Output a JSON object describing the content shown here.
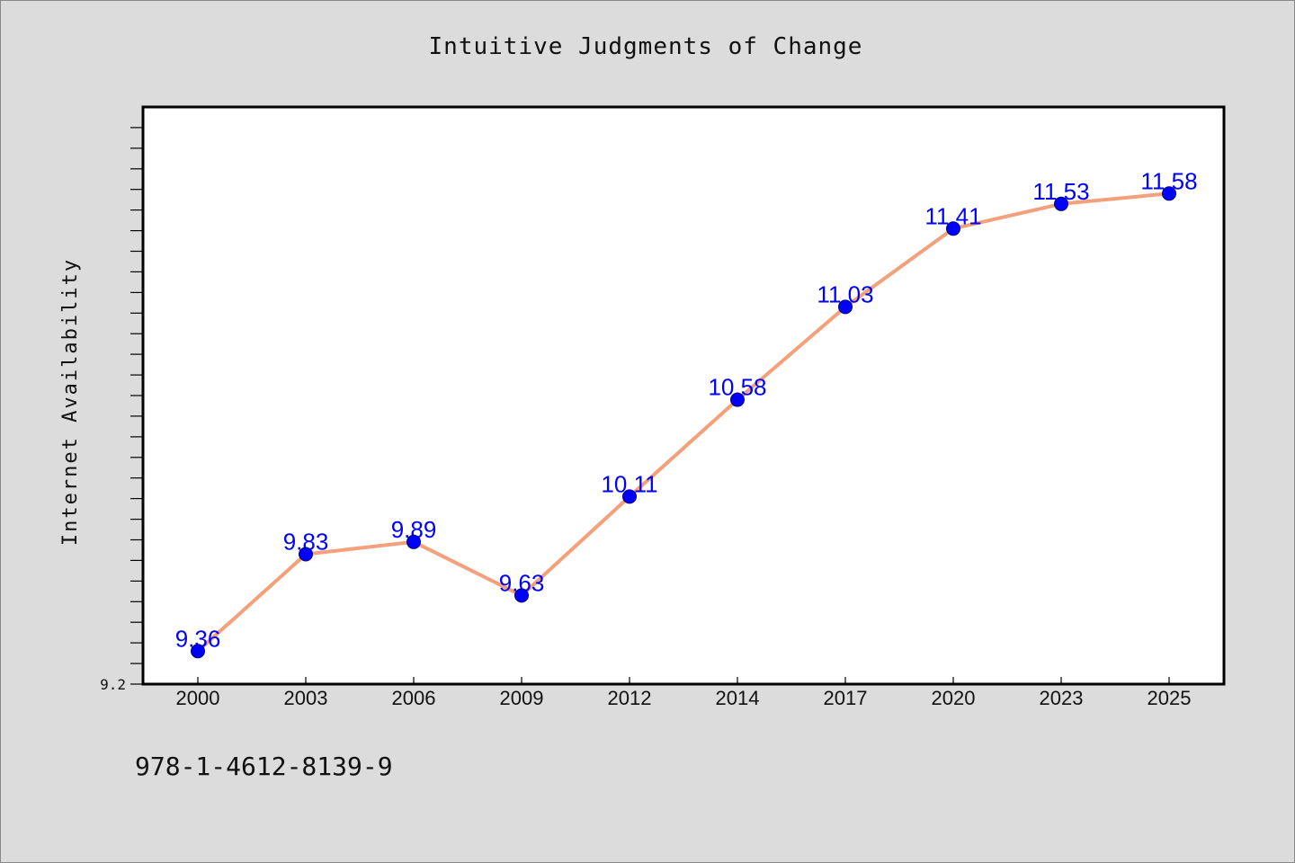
{
  "chart_data": {
    "type": "line",
    "title": "Intuitive Judgments of Change",
    "xlabel": "",
    "ylabel": "Internet Availability",
    "categories": [
      "2000",
      "2003",
      "2006",
      "2009",
      "2012",
      "2014",
      "2017",
      "2020",
      "2023",
      "2025"
    ],
    "series": [
      {
        "values": [
          9.36,
          9.83,
          9.89,
          9.63,
          10.11,
          10.58,
          11.03,
          11.41,
          11.53,
          11.58
        ],
        "data_labels": [
          "9.36",
          "9.83",
          "9.89",
          "9.63",
          "10.11",
          "10.58",
          "11.03",
          "11.41",
          "11.53",
          "11.58"
        ]
      }
    ],
    "ylim": [
      9.2,
      12.0
    ],
    "y_tick_labels": [
      "9.2"
    ],
    "grid": false,
    "legend": "none",
    "colors": {
      "line": "#f4a07a",
      "marker": "#0000ff",
      "data_label": "#0000ff",
      "background": "#dcdcdc",
      "plot_area": "#ffffff"
    }
  },
  "footer": {
    "isbn": "978-1-4612-8139-9"
  }
}
